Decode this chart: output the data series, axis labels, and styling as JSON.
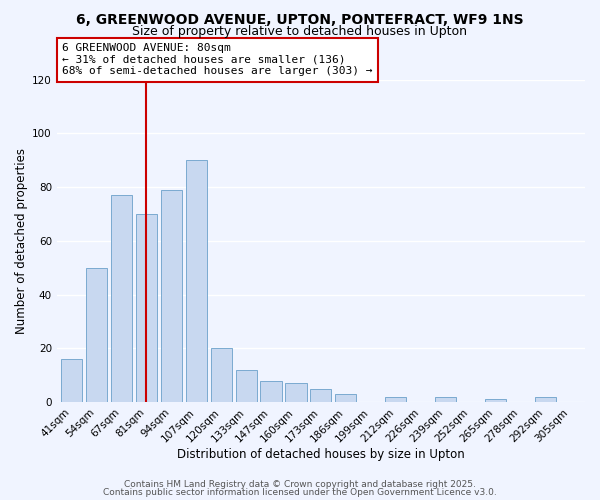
{
  "title": "6, GREENWOOD AVENUE, UPTON, PONTEFRACT, WF9 1NS",
  "subtitle": "Size of property relative to detached houses in Upton",
  "xlabel": "Distribution of detached houses by size in Upton",
  "ylabel": "Number of detached properties",
  "bar_labels": [
    "41sqm",
    "54sqm",
    "67sqm",
    "81sqm",
    "94sqm",
    "107sqm",
    "120sqm",
    "133sqm",
    "147sqm",
    "160sqm",
    "173sqm",
    "186sqm",
    "199sqm",
    "212sqm",
    "226sqm",
    "239sqm",
    "252sqm",
    "265sqm",
    "278sqm",
    "292sqm",
    "305sqm"
  ],
  "bar_values": [
    16,
    50,
    77,
    70,
    79,
    90,
    20,
    12,
    8,
    7,
    5,
    3,
    0,
    2,
    0,
    2,
    0,
    1,
    0,
    2,
    0
  ],
  "bar_color": "#c8d8f0",
  "bar_edge_color": "#7aaad0",
  "vline_x_index": 3,
  "vline_color": "#cc0000",
  "annotation_text": "6 GREENWOOD AVENUE: 80sqm\n← 31% of detached houses are smaller (136)\n68% of semi-detached houses are larger (303) →",
  "annotation_box_color": "#ffffff",
  "annotation_box_edge": "#cc0000",
  "ylim": [
    0,
    120
  ],
  "yticks": [
    0,
    20,
    40,
    60,
    80,
    100,
    120
  ],
  "background_color": "#f0f4ff",
  "grid_color": "#ffffff",
  "footer_line1": "Contains HM Land Registry data © Crown copyright and database right 2025.",
  "footer_line2": "Contains public sector information licensed under the Open Government Licence v3.0.",
  "title_fontsize": 10,
  "subtitle_fontsize": 9,
  "axis_label_fontsize": 8.5,
  "tick_fontsize": 7.5,
  "annotation_fontsize": 8,
  "footer_fontsize": 6.5
}
